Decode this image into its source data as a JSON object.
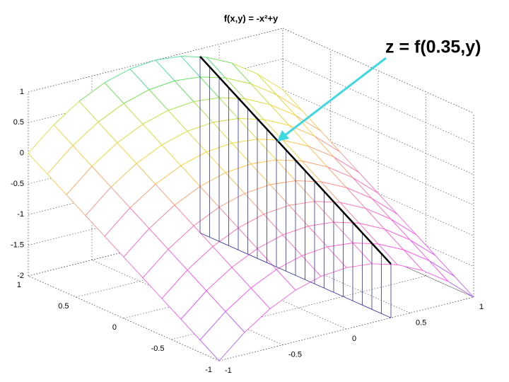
{
  "chart_data": {
    "type": "mesh",
    "title": "f(x,y) = -x²+y",
    "annotation": "z = f(0.35,y)",
    "x": [
      -1,
      -0.8,
      -0.6,
      -0.4,
      -0.2,
      0,
      0.2,
      0.4,
      0.6,
      0.8,
      1
    ],
    "y": [
      -1,
      -0.8,
      -0.6,
      -0.4,
      -0.2,
      0,
      0.2,
      0.4,
      0.6,
      0.8,
      1
    ],
    "z": [
      [
        -2,
        -1.64,
        -1.36,
        -1.16,
        -1.04,
        -1,
        -1.04,
        -1.16,
        -1.36,
        -1.64,
        -2
      ],
      [
        -1.8,
        -1.44,
        -1.16,
        -0.96,
        -0.84,
        -0.8,
        -0.84,
        -0.96,
        -1.16,
        -1.44,
        -1.8
      ],
      [
        -1.6,
        -1.24,
        -0.96,
        -0.76,
        -0.64,
        -0.6,
        -0.64,
        -0.76,
        -0.96,
        -1.24,
        -1.6
      ],
      [
        -1.4,
        -1.04,
        -0.76,
        -0.56,
        -0.44,
        -0.4,
        -0.44,
        -0.56,
        -0.76,
        -1.04,
        -1.4
      ],
      [
        -1.2,
        -0.84,
        -0.56,
        -0.36,
        -0.24,
        -0.2,
        -0.24,
        -0.36,
        -0.56,
        -0.84,
        -1.2
      ],
      [
        -1,
        -0.64,
        -0.36,
        -0.16,
        -0.04,
        0,
        -0.04,
        -0.16,
        -0.36,
        -0.64,
        -1
      ],
      [
        -0.8,
        -0.44,
        -0.16,
        0.04,
        0.16,
        0.2,
        0.16,
        0.04,
        -0.16,
        -0.44,
        -0.8
      ],
      [
        -0.6,
        -0.24,
        0.04,
        0.24,
        0.36,
        0.4,
        0.36,
        0.24,
        0.04,
        -0.24,
        -0.6
      ],
      [
        -0.4,
        -0.04,
        0.24,
        0.44,
        0.56,
        0.6,
        0.56,
        0.44,
        0.24,
        -0.04,
        -0.4
      ],
      [
        -0.2,
        0.16,
        0.44,
        0.64,
        0.76,
        0.8,
        0.76,
        0.64,
        0.44,
        0.16,
        -0.2
      ],
      [
        0,
        0.36,
        0.64,
        0.84,
        0.96,
        1,
        0.96,
        0.84,
        0.64,
        0.36,
        0
      ]
    ],
    "slice": {
      "x": 0.35,
      "y": [
        -1,
        -0.9,
        -0.8,
        -0.7,
        -0.6,
        -0.5,
        -0.4,
        -0.3,
        -0.2,
        -0.1,
        0,
        0.1,
        0.2,
        0.3,
        0.4,
        0.5,
        0.6,
        0.7,
        0.8,
        0.9,
        1
      ],
      "z": [
        -1.1225,
        -1.0225,
        -0.9225,
        -0.8225,
        -0.7225,
        -0.6225,
        -0.5225,
        -0.4225,
        -0.3225,
        -0.2225,
        -0.1225,
        -0.0225,
        0.0775,
        0.1775,
        0.2775,
        0.3775,
        0.4775,
        0.5775,
        0.6775,
        0.7775,
        0.8775
      ],
      "color": "#000000",
      "curtain_color": "#3030a0"
    },
    "xlim": [
      -1,
      1
    ],
    "ylim": [
      -1,
      1
    ],
    "zlim": [
      -2,
      1
    ],
    "xticks": [
      -1,
      -0.5,
      0,
      0.5,
      1
    ],
    "yticks": [
      -1,
      -0.5,
      0,
      0.5,
      1
    ],
    "zticks": [
      -2,
      -1.5,
      -1,
      -0.5,
      0,
      0.5,
      1
    ],
    "grid": true
  }
}
